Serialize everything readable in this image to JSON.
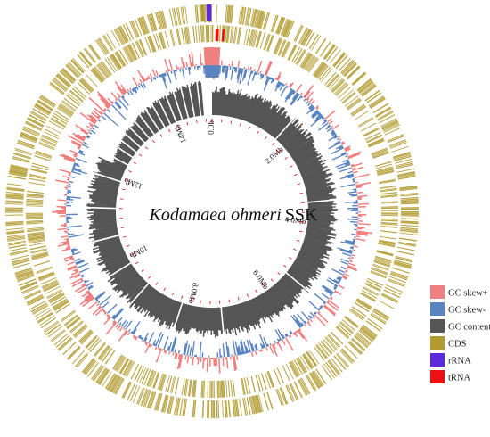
{
  "title": {
    "organism": "Kodamaea ohmeri",
    "strain": "SSK"
  },
  "scale": {
    "ticks": [
      {
        "value_mb": 0,
        "label": "0.0b"
      },
      {
        "value_mb": 2,
        "label": "2.0Mb"
      },
      {
        "value_mb": 4,
        "label": "4.0Mb"
      },
      {
        "value_mb": 6,
        "label": "6.0Mb"
      },
      {
        "value_mb": 8,
        "label": "8.0Mb"
      },
      {
        "value_mb": 10,
        "label": "10Mb"
      },
      {
        "value_mb": 12,
        "label": "12Mb"
      },
      {
        "value_mb": 14,
        "label": "14Mb"
      }
    ],
    "genome_length_mb": 14.9
  },
  "legend": [
    {
      "key": "gc_skew_plus",
      "label": "GC skew+",
      "color": "#f08080"
    },
    {
      "key": "gc_skew_minus",
      "label": "GC skew-",
      "color": "#5b85c0"
    },
    {
      "key": "gc_content",
      "label": "GC content",
      "color": "#555555"
    },
    {
      "key": "cds",
      "label": "CDS",
      "color": "#b19a2e"
    },
    {
      "key": "rrna",
      "label": "rRNA",
      "color": "#5b2bd9"
    },
    {
      "key": "trna",
      "label": "tRNA",
      "color": "#ee1111"
    }
  ]
}
